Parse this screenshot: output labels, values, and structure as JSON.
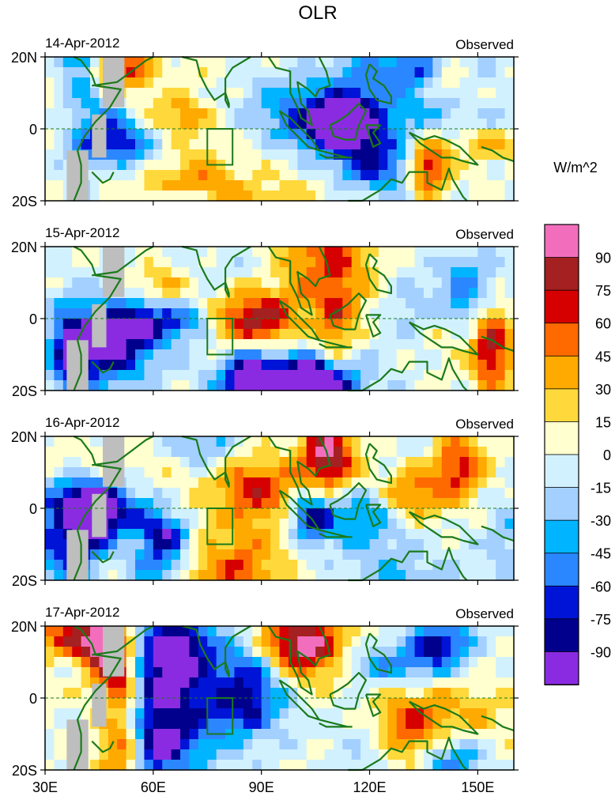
{
  "chart_data": {
    "type": "heatmap",
    "title": "OLR",
    "units": "W/m^2",
    "x_tick_labels": [
      "30E",
      "60E",
      "90E",
      "120E",
      "150E"
    ],
    "x_ticks": [
      30,
      60,
      90,
      120,
      150
    ],
    "xlim": [
      30,
      160
    ],
    "y_tick_labels": [
      "20N",
      "0",
      "20S"
    ],
    "y_ticks": [
      20,
      0,
      -20
    ],
    "ylim": [
      -20,
      20
    ],
    "panels": [
      {
        "date": "14-Apr-2012",
        "label": "Observed",
        "seed": 11
      },
      {
        "date": "15-Apr-2012",
        "label": "Observed",
        "seed": 23
      },
      {
        "date": "16-Apr-2012",
        "label": "Observed",
        "seed": 37
      },
      {
        "date": "17-Apr-2012",
        "label": "Observed",
        "seed": 53
      }
    ],
    "colorbar": {
      "levels": [
        "90",
        "75",
        "60",
        "45",
        "30",
        "15",
        "0",
        "-15",
        "-30",
        "-45",
        "-60",
        "-75",
        "-90"
      ],
      "colors": [
        "#f26ebd",
        "#a52020",
        "#d70000",
        "#ff6a00",
        "#ffaa00",
        "#ffd93b",
        "#ffffcf",
        "#d2f1ff",
        "#a3d0ff",
        "#00b4ff",
        "#2a87ff",
        "#0014d8",
        "#00008c",
        "#8a2be2"
      ]
    },
    "box_region": {
      "lon": [
        75,
        82
      ],
      "lat": [
        -10,
        0
      ]
    },
    "missing_color": "#bebebe",
    "coast_color": "#1b7a1b"
  }
}
